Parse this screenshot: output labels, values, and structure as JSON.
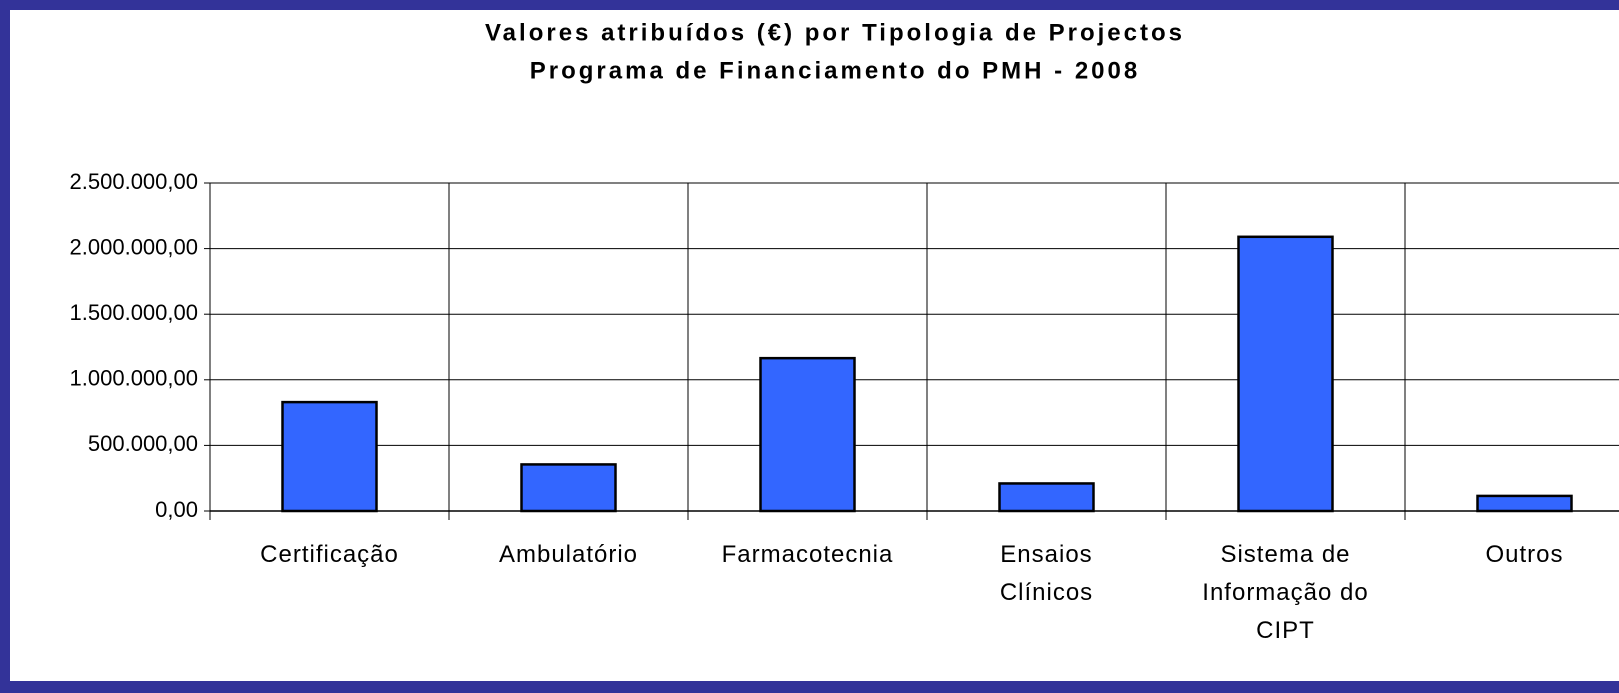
{
  "chart_data": {
    "type": "bar",
    "title": "Valores atribuídos (€) por Tipologia de Projectos",
    "subtitle": "Programa de Financiamento do PMH - 2008",
    "categories": [
      "Certificação",
      "Ambulatório",
      "Farmacotecnia",
      "Ensaios Clínicos",
      "Sistema de Informação do CIPT",
      "Outros"
    ],
    "values": [
      830000,
      355000,
      1165000,
      210000,
      2090000,
      115000
    ],
    "color": "#3366ff",
    "ylim": [
      0,
      2500000
    ],
    "yticks": [
      {
        "value": 0,
        "label": "0,00"
      },
      {
        "value": 500000,
        "label": "500.000,00"
      },
      {
        "value": 1000000,
        "label": "1.000.000,00"
      },
      {
        "value": 1500000,
        "label": "1.500.000,00"
      },
      {
        "value": 2000000,
        "label": "2.000.000,00"
      },
      {
        "value": 2500000,
        "label": "2.500.000,00"
      }
    ],
    "grid": true
  }
}
